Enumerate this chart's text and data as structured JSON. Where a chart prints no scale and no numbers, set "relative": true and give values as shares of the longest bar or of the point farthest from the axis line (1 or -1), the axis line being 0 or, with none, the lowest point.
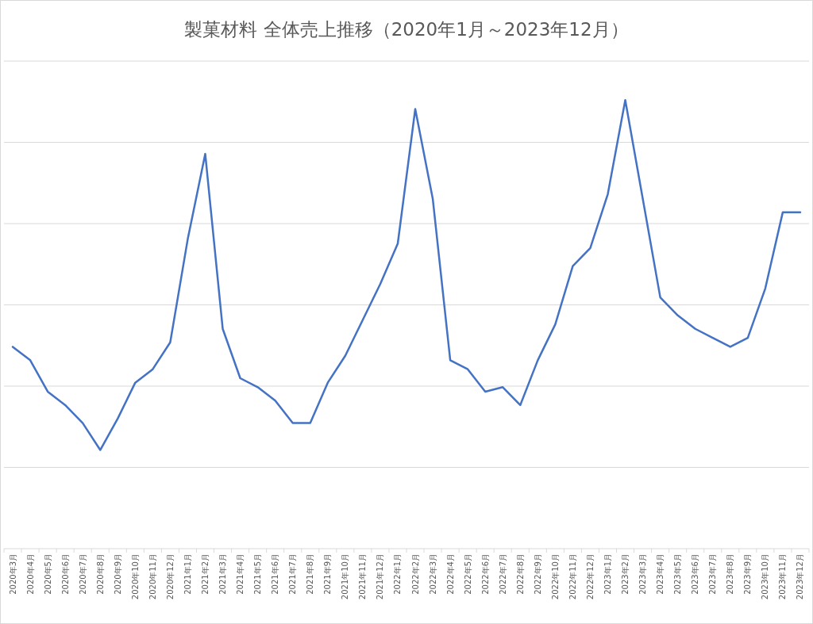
{
  "chart_data": {
    "type": "line",
    "title": "製菓材料 全体売上推移（2020年1月～2023年12月）",
    "relative": true,
    "grid": "y",
    "categories": [
      "2020年3月",
      "2020年4月",
      "2020年5月",
      "2020年6月",
      "2020年7月",
      "2020年8月",
      "2020年9月",
      "2020年10月",
      "2020年11月",
      "2020年12月",
      "2021年1月",
      "2021年2月",
      "2021年3月",
      "2021年4月",
      "2021年5月",
      "2021年6月",
      "2021年7月",
      "2021年8月",
      "2021年9月",
      "2021年10月",
      "2021年11月",
      "2021年12月",
      "2022年1月",
      "2022年2月",
      "2022年3月",
      "2022年4月",
      "2022年5月",
      "2022年6月",
      "2022年7月",
      "2022年8月",
      "2022年9月",
      "2022年10月",
      "2022年11月",
      "2022年12月",
      "2023年1月",
      "2023年2月",
      "2023年3月",
      "2023年4月",
      "2023年5月",
      "2023年6月",
      "2023年7月",
      "2023年8月",
      "2023年9月",
      "2023年10月",
      "2023年11月",
      "2023年12月"
    ],
    "series": [
      {
        "color": "#4472c4",
        "values": [
          0.45,
          0.42,
          0.35,
          0.32,
          0.28,
          0.22,
          0.29,
          0.37,
          0.4,
          0.46,
          0.69,
          0.88,
          0.49,
          0.38,
          0.36,
          0.33,
          0.28,
          0.28,
          0.37,
          0.43,
          0.51,
          0.59,
          0.68,
          0.98,
          0.78,
          0.42,
          0.4,
          0.35,
          0.36,
          0.32,
          0.42,
          0.5,
          0.63,
          0.67,
          0.79,
          1,
          0.78,
          0.56,
          0.52,
          0.49,
          0.47,
          0.45,
          0.47,
          0.58,
          0.75,
          0.75
        ]
      }
    ]
  }
}
